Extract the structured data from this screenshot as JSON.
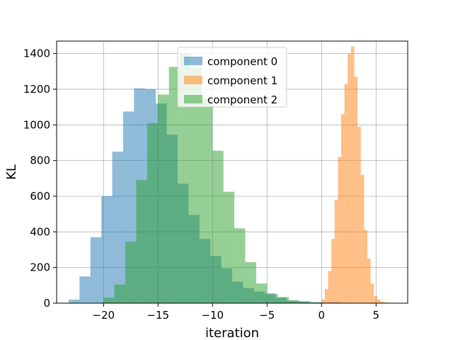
{
  "chart_data": {
    "type": "histogram",
    "title": "",
    "xlabel": "iteration",
    "ylabel": "KL",
    "xlim": [
      -24.3,
      7.9
    ],
    "ylim": [
      0,
      1470
    ],
    "xticks": [
      -20,
      -15,
      -10,
      -5,
      0,
      5
    ],
    "xtick_labels": [
      "−20",
      "−15",
      "−10",
      "−5",
      "0",
      "5"
    ],
    "yticks": [
      0,
      200,
      400,
      600,
      800,
      1000,
      1200,
      1400
    ],
    "ytick_labels": [
      "0",
      "200",
      "400",
      "600",
      "800",
      "1000",
      "1200",
      "1400"
    ],
    "grid": true,
    "legend_position": "top-center",
    "series": [
      {
        "name": "component 0",
        "color": "#1f77b4",
        "alpha": 0.5,
        "bin_start": -23.2,
        "bin_width": 1.0,
        "counts": [
          20,
          150,
          370,
          600,
          850,
          1075,
          1205,
          1200,
          1120,
          945,
          670,
          495,
          360,
          265,
          195,
          120,
          85,
          65,
          55,
          30,
          15,
          10,
          5,
          5,
          5
        ]
      },
      {
        "name": "component 1",
        "color": "#ff7f0e",
        "alpha": 0.5,
        "bin_start": 0.0,
        "bin_width": 0.3,
        "counts": [
          20,
          80,
          180,
          360,
          580,
          820,
          1060,
          1230,
          1400,
          1440,
          1270,
          990,
          720,
          410,
          250,
          110,
          40,
          20,
          8,
          5
        ]
      },
      {
        "name": "component 2",
        "color": "#2ca02c",
        "alpha": 0.5,
        "bin_start": -20.0,
        "bin_width": 1.0,
        "counts": [
          30,
          105,
          345,
          690,
          1010,
          1170,
          1325,
          1400,
          1320,
          1150,
          855,
          625,
          420,
          230,
          110,
          50,
          35,
          15,
          10,
          5
        ]
      }
    ]
  }
}
